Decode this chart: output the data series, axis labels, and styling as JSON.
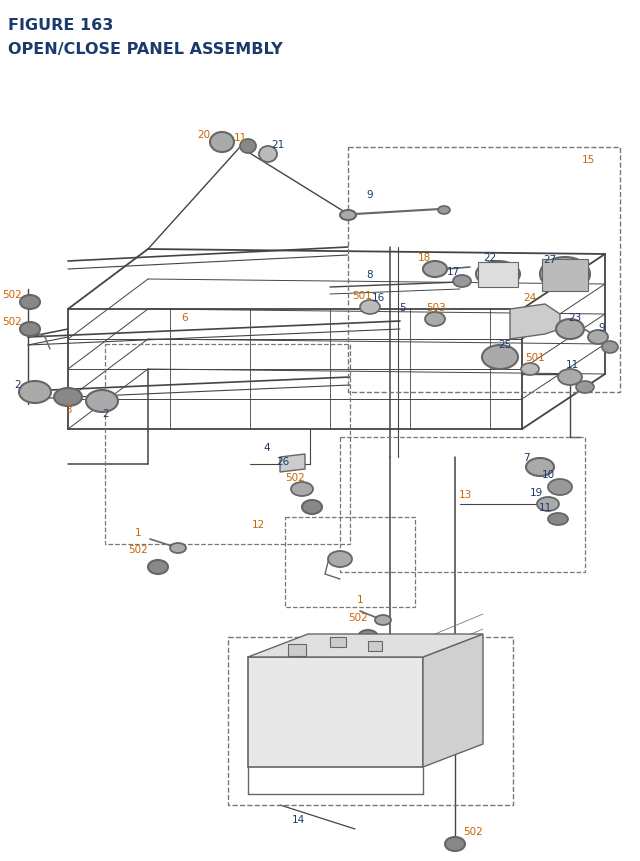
{
  "title_line1": "FIGURE 163",
  "title_line2": "OPEN/CLOSE PANEL ASSEMBLY",
  "title_color": "#1a3a6b",
  "title_fontsize": 11.5,
  "bg_color": "#ffffff",
  "lc_orange": "#cc6600",
  "lc_blue": "#1a3a6b",
  "part_color": "#666666",
  "line_color": "#444444",
  "dash_color": "#777777",
  "fig_width": 6.4,
  "fig_height": 8.62
}
